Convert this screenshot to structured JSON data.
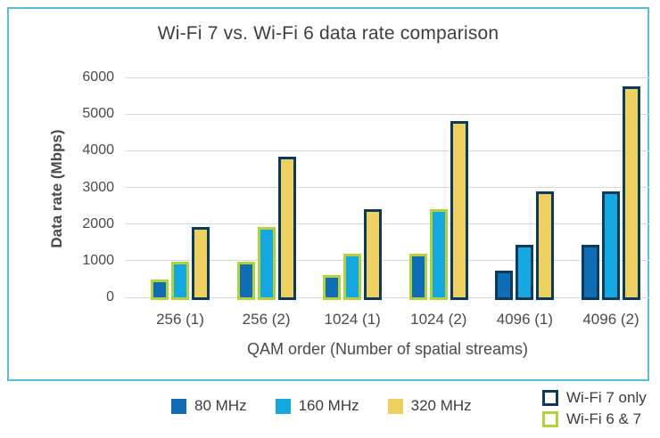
{
  "frame": {
    "border_color": "#55BFDC",
    "background_color": "#FFFFFF",
    "gridline_color": "#D8D8D8",
    "text_color": "#4A4A4A"
  },
  "chart_data": {
    "type": "bar",
    "title": "Wi-Fi 7 vs. Wi-Fi 6 data rate comparison",
    "xlabel": "QAM order (Number of spatial streams)",
    "ylabel": "Data rate (Mbps)",
    "ylim": [
      0,
      6000
    ],
    "yticks": [
      0,
      1000,
      2000,
      3000,
      4000,
      5000,
      6000
    ],
    "grid": "horizontal-only",
    "legend_position": "bottom",
    "categories": [
      "256 (1)",
      "256 (2)",
      "1024 (1)",
      "1024 (2)",
      "4096 (1)",
      "4096 (2)"
    ],
    "series": [
      {
        "name": "80 MHz",
        "color": "#0F6DB6",
        "values": [
          480,
          960,
          600,
          1200,
          720,
          1440
        ]
      },
      {
        "name": "160 MHz",
        "color": "#14A8E0",
        "values": [
          960,
          1920,
          1200,
          2400,
          1440,
          2880
        ]
      },
      {
        "name": "320 MHz",
        "color": "#EDD05E",
        "values": [
          1920,
          3840,
          2400,
          4800,
          2880,
          5760
        ]
      }
    ],
    "outline_colors": {
      "wifi7only": "#0B3A5F",
      "wifi6and7": "#B2D235"
    },
    "bar_outlines": [
      [
        "wifi6and7",
        "wifi6and7",
        "wifi7only"
      ],
      [
        "wifi6and7",
        "wifi6and7",
        "wifi7only"
      ],
      [
        "wifi6and7",
        "wifi6and7",
        "wifi7only"
      ],
      [
        "wifi6and7",
        "wifi6and7",
        "wifi7only"
      ],
      [
        "wifi7only",
        "wifi7only",
        "wifi7only"
      ],
      [
        "wifi7only",
        "wifi7only",
        "wifi7only"
      ]
    ],
    "outline_legend": [
      {
        "name": "Wi-Fi 7 only",
        "key": "wifi7only",
        "color": "#0B3A5F"
      },
      {
        "name": "Wi-Fi 6 & 7",
        "key": "wifi6and7",
        "color": "#B2D235"
      }
    ]
  }
}
